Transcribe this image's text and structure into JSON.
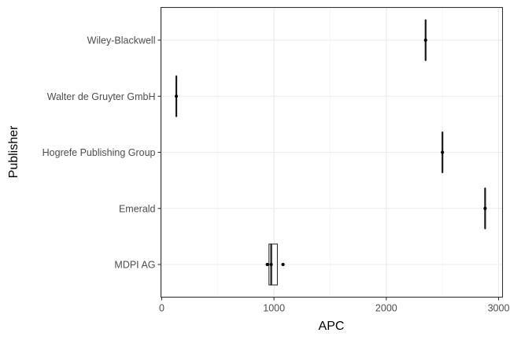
{
  "chart_data": {
    "type": "boxplot",
    "orientation": "horizontal",
    "xlabel": "APC",
    "ylabel": "Publisher",
    "xlim": [
      0,
      3000
    ],
    "x_ticks": [
      0,
      1000,
      2000,
      3000
    ],
    "x_tick_labels": [
      "0",
      "1000",
      "2000",
      "3000"
    ],
    "grid": true,
    "theme": "bw",
    "categories": [
      "MDPI AG",
      "Emerald",
      "Hogrefe Publishing Group",
      "Walter de Gruyter GmbH",
      "Wiley-Blackwell"
    ],
    "boxes": [
      {
        "category": "MDPI AG",
        "min": 940,
        "q1": 955,
        "median": 975,
        "q3": 1030,
        "max": 1030,
        "outliers": [
          940,
          975,
          1080
        ]
      },
      {
        "category": "Emerald",
        "min": 2880,
        "q1": 2880,
        "median": 2880,
        "q3": 2880,
        "max": 2880,
        "outliers": [
          2880
        ]
      },
      {
        "category": "Hogrefe Publishing Group",
        "min": 2500,
        "q1": 2500,
        "median": 2500,
        "q3": 2500,
        "max": 2500,
        "outliers": [
          2500
        ]
      },
      {
        "category": "Walter de Gruyter GmbH",
        "min": 130,
        "q1": 130,
        "median": 130,
        "q3": 130,
        "max": 130,
        "outliers": [
          130
        ]
      },
      {
        "category": "Wiley-Blackwell",
        "min": 2350,
        "q1": 2350,
        "median": 2350,
        "q3": 2350,
        "max": 2350,
        "outliers": [
          2350
        ]
      }
    ]
  }
}
